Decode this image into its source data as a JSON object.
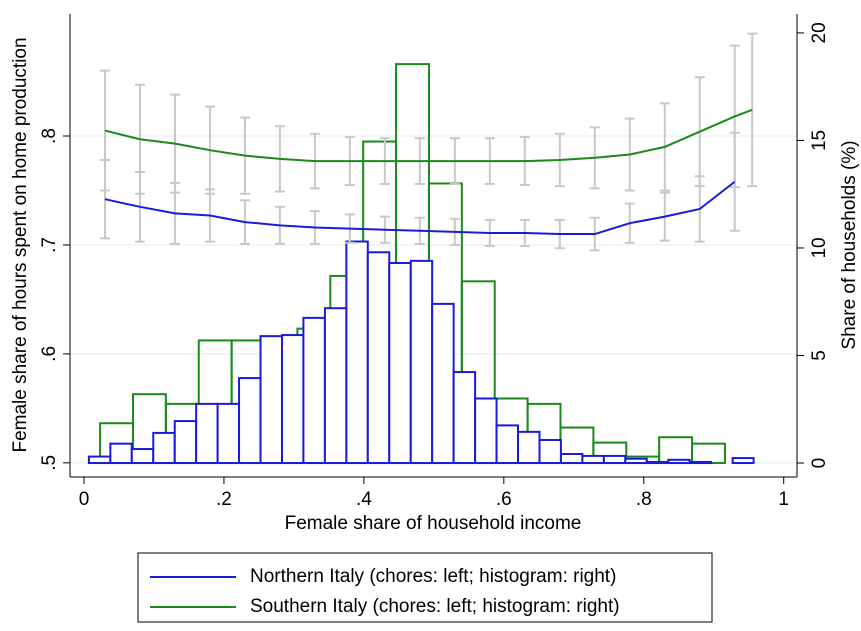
{
  "chart_data": {
    "type": "combo",
    "xlabel": "Female share of household income",
    "ylabel": "Female share of hours spent on home production",
    "y2label": "Share of households (%)",
    "xlim": [
      -0.02,
      1.019
    ],
    "xticks": [
      0,
      {
        "value": 0.2,
        "label": ".2"
      },
      {
        "value": 0.4,
        "label": ".4"
      },
      {
        "value": 0.6,
        "label": ".6"
      },
      {
        "value": 0.8,
        "label": ".8"
      },
      1
    ],
    "ylim": [
      0.487,
      0.912
    ],
    "yticks": [
      {
        "value": 0.5,
        "label": ".5"
      },
      {
        "value": 0.6,
        "label": ".6"
      },
      {
        "value": 0.7,
        "label": ".7"
      },
      {
        "value": 0.8,
        "label": ".8"
      }
    ],
    "y2lim": [
      -0.65,
      20.88
    ],
    "y2ticks": [
      0,
      5,
      10,
      15,
      20
    ],
    "grid": true,
    "error_color": "#c8c8c8",
    "histograms": [
      {
        "color": "#1a1adc",
        "axis": "y2",
        "bins": [
          0.007,
          0.0377,
          0.0683,
          0.099,
          0.1297,
          0.1603,
          0.191,
          0.2216,
          0.2523,
          0.283,
          0.3136,
          0.3443,
          0.375,
          0.4056,
          0.4363,
          0.467,
          0.4976,
          0.5283,
          0.559,
          0.5896,
          0.6203,
          0.651,
          0.6816,
          0.7123,
          0.743,
          0.7736,
          0.8043,
          0.835,
          0.8656,
          0.8963,
          0.927,
          0.957
        ],
        "counts": [
          0.3,
          0.9,
          0.65,
          1.4,
          1.95,
          2.75,
          2.75,
          3.95,
          5.9,
          5.95,
          6.75,
          7.2,
          10.3,
          9.8,
          9.3,
          9.4,
          7.4,
          4.23,
          3.0,
          1.75,
          1.45,
          1.07,
          0.42,
          0.33,
          0.33,
          0.2,
          0.05,
          0.15,
          0.05,
          0,
          0.23
        ]
      },
      {
        "color": "#1a8a1a",
        "axis": "y2",
        "bins": [
          0.023,
          0.07,
          0.117,
          0.164,
          0.211,
          0.258,
          0.305,
          0.352,
          0.399,
          0.446,
          0.493,
          0.54,
          0.587,
          0.634,
          0.681,
          0.728,
          0.775,
          0.822,
          0.869,
          0.916
        ],
        "counts": [
          1.85,
          3.2,
          2.75,
          5.7,
          5.7,
          5.75,
          6.25,
          8.7,
          14.95,
          18.55,
          13.0,
          8.45,
          3.0,
          2.75,
          1.65,
          0.95,
          0.3,
          1.2,
          0.9
        ]
      }
    ],
    "series": [
      {
        "name": "Northern Italy (chores: left; histogram: right)",
        "color": "#1a1adc",
        "axis": "y",
        "x": [
          0.03,
          0.08,
          0.13,
          0.18,
          0.23,
          0.28,
          0.33,
          0.38,
          0.43,
          0.48,
          0.53,
          0.58,
          0.63,
          0.68,
          0.73,
          0.78,
          0.83,
          0.88,
          0.93
        ],
        "values": [
          0.742,
          0.735,
          0.729,
          0.727,
          0.721,
          0.718,
          0.716,
          0.715,
          0.714,
          0.713,
          0.712,
          0.711,
          0.711,
          0.71,
          0.71,
          0.72,
          0.726,
          0.733,
          0.758
        ],
        "errors": [
          0.036,
          0.032,
          0.028,
          0.024,
          0.02,
          0.017,
          0.015,
          0.013,
          0.012,
          0.012,
          0.012,
          0.012,
          0.012,
          0.013,
          0.015,
          0.018,
          0.022,
          0.03,
          0.045
        ]
      },
      {
        "name": "Southern Italy (chores: left; histogram: right)",
        "color": "#1a8a1a",
        "axis": "y",
        "x": [
          0.03,
          0.08,
          0.13,
          0.18,
          0.23,
          0.28,
          0.33,
          0.38,
          0.43,
          0.48,
          0.53,
          0.58,
          0.63,
          0.68,
          0.73,
          0.78,
          0.83,
          0.88,
          0.93,
          0.955
        ],
        "values": [
          0.805,
          0.797,
          0.793,
          0.787,
          0.782,
          0.779,
          0.777,
          0.777,
          0.777,
          0.777,
          0.777,
          0.777,
          0.777,
          0.778,
          0.78,
          0.783,
          0.79,
          0.804,
          0.818,
          0.824
        ],
        "errors": [
          0.055,
          0.05,
          0.045,
          0.04,
          0.035,
          0.03,
          0.025,
          0.022,
          0.021,
          0.021,
          0.021,
          0.021,
          0.022,
          0.024,
          0.028,
          0.033,
          0.04,
          0.05,
          0.065,
          0.07
        ]
      }
    ]
  }
}
